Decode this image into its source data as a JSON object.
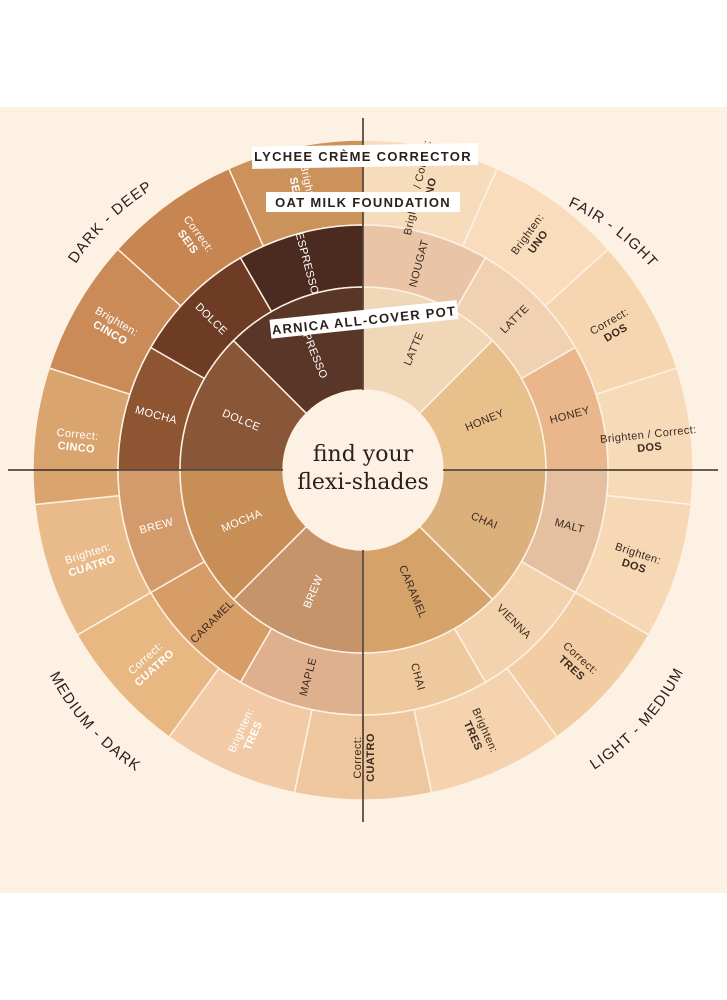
{
  "center": {
    "line1": "find your",
    "line2": "flexi-shades"
  },
  "rings": {
    "corrector": {
      "title": "LYCHEE CRÈME CORRECTOR"
    },
    "foundation": {
      "title": "OAT MILK FOUNDATION"
    },
    "pot": {
      "title": "ARNICA ALL-COVER POT"
    }
  },
  "quadrants": {
    "dark_deep": "DARK - DEEP",
    "fair_light": "FAIR - LIGHT",
    "light_medium": "LIGHT - MEDIUM",
    "medium_dark": "MEDIUM - DARK"
  },
  "pot_shades": [
    {
      "name": "LATTE",
      "color": "#f0d7b7",
      "dark": true
    },
    {
      "name": "HONEY",
      "color": "#e8c08c",
      "dark": true
    },
    {
      "name": "CHAI",
      "color": "#dcb07c",
      "dark": true
    },
    {
      "name": "CARAMEL",
      "color": "#d5a26a",
      "dark": true
    },
    {
      "name": "BREW",
      "color": "#c6946a",
      "dark": false
    },
    {
      "name": "MOCHA",
      "color": "#c78e56",
      "dark": false
    },
    {
      "name": "DOLCE",
      "color": "#8a5638",
      "dark": false
    },
    {
      "name": "ESPRESSO",
      "color": "#5a3628",
      "dark": false
    }
  ],
  "foundation_shades": [
    {
      "name": "NOUGAT",
      "color": "#e9c4a6",
      "dark": true
    },
    {
      "name": "LATTE",
      "color": "#f0d2b2",
      "dark": true
    },
    {
      "name": "HONEY",
      "color": "#eab78d",
      "dark": true
    },
    {
      "name": "MALT",
      "color": "#e4c0a0",
      "dark": true
    },
    {
      "name": "VIENNA",
      "color": "#f3d3ad",
      "dark": true
    },
    {
      "name": "CHAI",
      "color": "#efc99e",
      "dark": true
    },
    {
      "name": "MAPLE",
      "color": "#deb08e",
      "dark": true
    },
    {
      "name": "CARAMEL",
      "color": "#d69d66",
      "dark": true
    },
    {
      "name": "BREW",
      "color": "#d39b6c",
      "dark": false
    },
    {
      "name": "MOCHA",
      "color": "#8e5533",
      "dark": false
    },
    {
      "name": "DOLCE",
      "color": "#6e3c24",
      "dark": false
    },
    {
      "name": "ESPRESSO",
      "color": "#4b2b1f",
      "dark": false
    }
  ],
  "corrector_shades": [
    {
      "line1": "Brighten / Correct:",
      "line2": "UNO",
      "color": "#f6dcbb",
      "dark": true
    },
    {
      "line1": "Brighten:",
      "line2": "UNO",
      "color": "#f8dcbc",
      "dark": true
    },
    {
      "line1": "Correct:",
      "line2": "DOS",
      "color": "#f5d6b0",
      "dark": true
    },
    {
      "line1": "Brighten / Correct:",
      "line2": "DOS",
      "color": "#f7dbb9",
      "dark": true
    },
    {
      "line1": "Brighten:",
      "line2": "DOS",
      "color": "#f6d8b4",
      "dark": true
    },
    {
      "line1": "Correct:",
      "line2": "TRES",
      "color": "#f2cda4",
      "dark": true
    },
    {
      "line1": "Brighten:",
      "line2": "TRES",
      "color": "#f4d3ae",
      "dark": true
    },
    {
      "line1": "Correct:",
      "line2": "CUATRO",
      "color": "#eec79e",
      "dark": true
    },
    {
      "line1": "Brighten:",
      "line2": "TRES",
      "color": "#f2cba6",
      "dark": false
    },
    {
      "line1": "Correct:",
      "line2": "CUATRO",
      "color": "#e8b883",
      "dark": false
    },
    {
      "line1": "Brighten:",
      "line2": "CUATRO",
      "color": "#e9bb8b",
      "dark": false
    },
    {
      "line1": "Correct:",
      "line2": "CINCO",
      "color": "#d9a46e",
      "dark": false
    },
    {
      "line1": "Brighten:",
      "line2": "CINCO",
      "color": "#cb8b58",
      "dark": false
    },
    {
      "line1": "Correct:",
      "line2": "SEIS",
      "color": "#c78552",
      "dark": false
    },
    {
      "line1": "Brighten:",
      "line2": "SEIS",
      "color": "#cc925c",
      "dark": false
    }
  ]
}
